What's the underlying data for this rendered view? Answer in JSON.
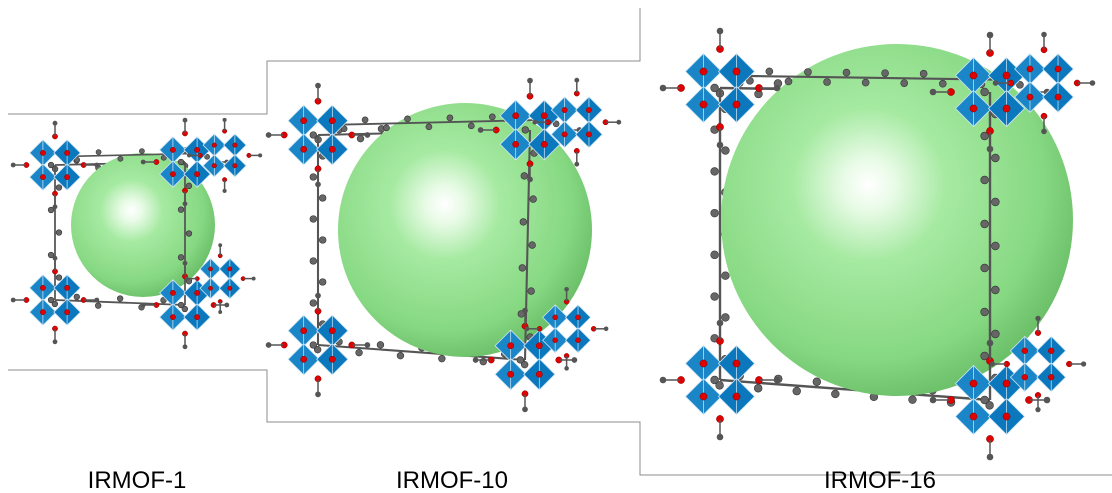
{
  "panels": [
    {
      "label": "IRMOF-1"
    },
    {
      "label": "IRMOF-10"
    },
    {
      "label": "IRMOF-16"
    }
  ]
}
